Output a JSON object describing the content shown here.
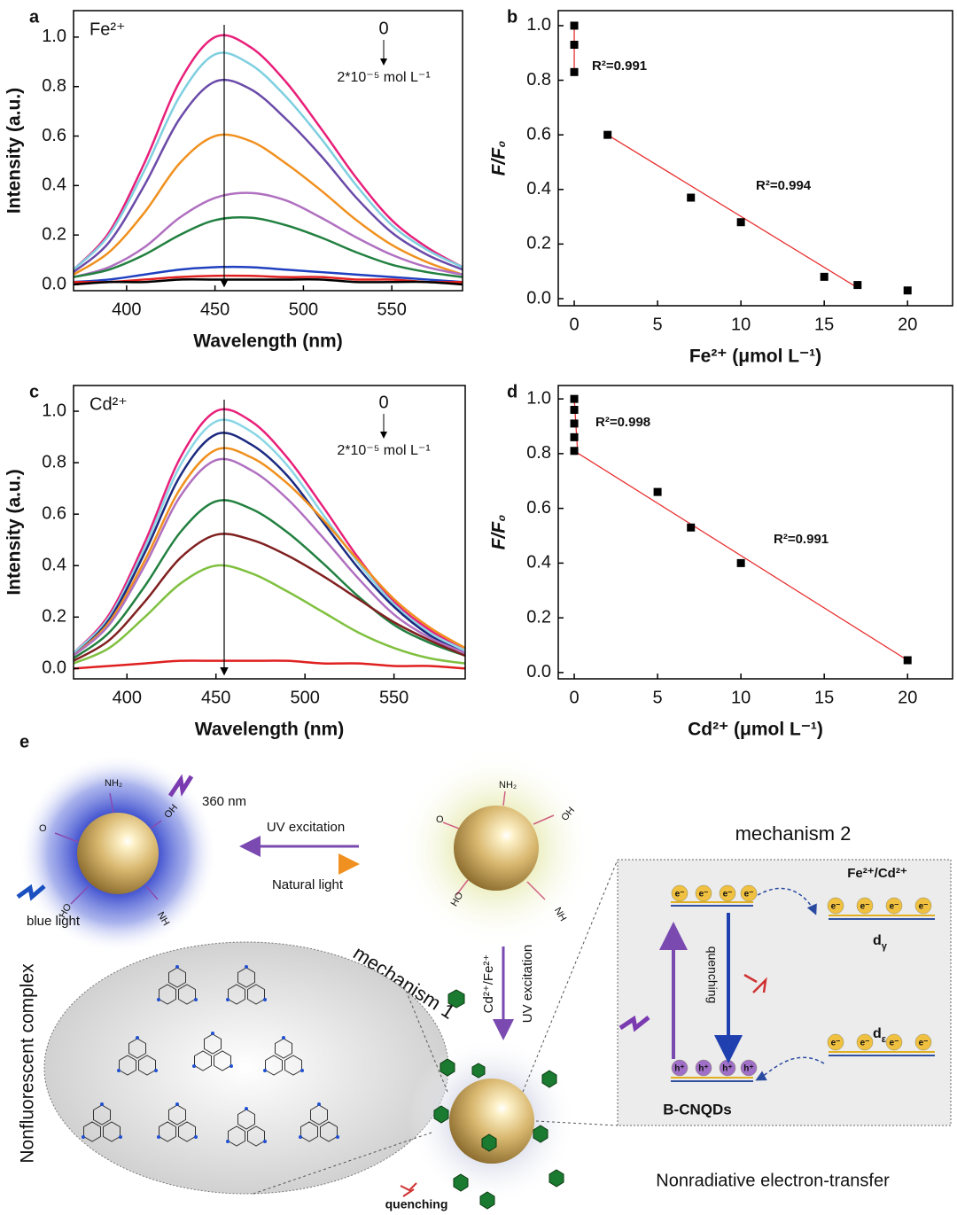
{
  "chart_data": [
    {
      "type": "line",
      "panel_label": "a",
      "x_label": "Wavelength (nm)",
      "y_label": "Intensity (a.u.)",
      "annotations": [
        "Fe²⁺",
        "0",
        "2*10⁻⁵ mol L⁻¹"
      ],
      "x": [
        370,
        390,
        410,
        430,
        450,
        470,
        490,
        510,
        530,
        550,
        570,
        590
      ],
      "series": [
        {
          "color": "#e8207a",
          "values": [
            0.06,
            0.21,
            0.49,
            0.82,
            1.0,
            0.96,
            0.82,
            0.63,
            0.43,
            0.26,
            0.15,
            0.07
          ]
        },
        {
          "color": "#7ecfe0",
          "values": [
            0.06,
            0.2,
            0.46,
            0.76,
            0.93,
            0.89,
            0.76,
            0.59,
            0.4,
            0.24,
            0.14,
            0.07
          ]
        },
        {
          "color": "#6a4aa8",
          "values": [
            0.05,
            0.17,
            0.4,
            0.67,
            0.82,
            0.79,
            0.67,
            0.52,
            0.35,
            0.21,
            0.12,
            0.06
          ]
        },
        {
          "color": "#f0901e",
          "values": [
            0.04,
            0.13,
            0.29,
            0.49,
            0.6,
            0.58,
            0.49,
            0.38,
            0.26,
            0.16,
            0.09,
            0.04
          ]
        },
        {
          "color": "#b070c0",
          "values": [
            0.03,
            0.07,
            0.15,
            0.27,
            0.35,
            0.37,
            0.34,
            0.27,
            0.19,
            0.12,
            0.07,
            0.04
          ]
        },
        {
          "color": "#228040",
          "values": [
            0.03,
            0.06,
            0.12,
            0.2,
            0.26,
            0.27,
            0.24,
            0.19,
            0.13,
            0.08,
            0.05,
            0.03
          ]
        },
        {
          "color": "#2040c0",
          "values": [
            0.01,
            0.02,
            0.04,
            0.06,
            0.07,
            0.07,
            0.06,
            0.05,
            0.04,
            0.03,
            0.02,
            0.01
          ]
        },
        {
          "color": "#e02020",
          "values": [
            0.01,
            0.01,
            0.02,
            0.03,
            0.035,
            0.035,
            0.03,
            0.03,
            0.02,
            0.02,
            0.01,
            0.01
          ]
        },
        {
          "color": "#000000",
          "values": [
            0.0,
            0.01,
            0.01,
            0.02,
            0.02,
            0.02,
            0.02,
            0.02,
            0.01,
            0.01,
            0.01,
            0.0
          ]
        }
      ],
      "xlim": [
        370,
        590
      ],
      "ylim": [
        -0.025,
        1.107
      ],
      "xticks": [
        400,
        450,
        500,
        550
      ],
      "yticks": [
        {
          "value": 0,
          "label": "0.0"
        },
        {
          "value": 0.2,
          "label": "0.2"
        },
        {
          "value": 0.4,
          "label": "0.4"
        },
        {
          "value": 0.6,
          "label": "0.6"
        },
        {
          "value": 0.8,
          "label": "0.8"
        },
        {
          "value": 1,
          "label": "1.0"
        }
      ]
    },
    {
      "type": "scatter",
      "panel_label": "b",
      "x_label": "Fe²⁺ (μmol L⁻¹)",
      "y_label": "F/F₀",
      "color": "#000000",
      "annotations": [
        "R²=0.991",
        "R²=0.994"
      ],
      "x": [
        0,
        0,
        0,
        2,
        7,
        10,
        15,
        17,
        20
      ],
      "values": [
        1.0,
        0.93,
        0.83,
        0.6,
        0.37,
        0.28,
        0.08,
        0.05,
        0.03
      ],
      "fit_lines": [
        {
          "color": "#e83030",
          "x": [
            0,
            0
          ],
          "values": [
            1.0,
            0.83
          ]
        },
        {
          "color": "#e83030",
          "x": [
            2,
            17
          ],
          "values": [
            0.6,
            0.04
          ]
        }
      ],
      "xlim": [
        -0.96,
        22.7
      ],
      "ylim": [
        -0.026,
        1.055
      ],
      "xticks": [
        0,
        5,
        10,
        15,
        20
      ],
      "yticks": [
        {
          "value": 0,
          "label": "0.0"
        },
        {
          "value": 0.2,
          "label": "0.2"
        },
        {
          "value": 0.4,
          "label": "0.4"
        },
        {
          "value": 0.6,
          "label": "0.6"
        },
        {
          "value": 0.8,
          "label": "0.8"
        },
        {
          "value": 1,
          "label": "1.0"
        }
      ]
    },
    {
      "type": "line",
      "panel_label": "c",
      "x_label": "Wavelength (nm)",
      "y_label": "Intensity (a.u.)",
      "annotations": [
        "Cd²⁺",
        "0",
        "2*10⁻⁵ mol L⁻¹"
      ],
      "x": [
        370,
        390,
        410,
        430,
        450,
        470,
        490,
        510,
        530,
        550,
        570,
        590
      ],
      "series": [
        {
          "color": "#e8207a",
          "values": [
            0.06,
            0.21,
            0.49,
            0.82,
            1.0,
            0.96,
            0.82,
            0.63,
            0.43,
            0.26,
            0.15,
            0.07
          ]
        },
        {
          "color": "#8ad6e6",
          "values": [
            0.06,
            0.2,
            0.47,
            0.79,
            0.96,
            0.92,
            0.79,
            0.6,
            0.41,
            0.25,
            0.14,
            0.07
          ]
        },
        {
          "color": "#1c2a80",
          "values": [
            0.05,
            0.19,
            0.45,
            0.75,
            0.91,
            0.87,
            0.75,
            0.57,
            0.39,
            0.24,
            0.13,
            0.06
          ]
        },
        {
          "color": "#f0901e",
          "values": [
            0.05,
            0.18,
            0.42,
            0.7,
            0.85,
            0.82,
            0.72,
            0.58,
            0.42,
            0.27,
            0.16,
            0.08
          ]
        },
        {
          "color": "#b070c0",
          "values": [
            0.05,
            0.17,
            0.4,
            0.67,
            0.81,
            0.77,
            0.66,
            0.51,
            0.35,
            0.21,
            0.12,
            0.06
          ]
        },
        {
          "color": "#228040",
          "values": [
            0.04,
            0.14,
            0.32,
            0.53,
            0.65,
            0.62,
            0.53,
            0.41,
            0.28,
            0.17,
            0.1,
            0.05
          ]
        },
        {
          "color": "#802020",
          "values": [
            0.03,
            0.11,
            0.26,
            0.43,
            0.52,
            0.5,
            0.44,
            0.36,
            0.27,
            0.18,
            0.11,
            0.05
          ]
        },
        {
          "color": "#80c040",
          "values": [
            0.02,
            0.08,
            0.2,
            0.33,
            0.4,
            0.37,
            0.3,
            0.22,
            0.14,
            0.08,
            0.04,
            0.02
          ]
        },
        {
          "color": "#e02020",
          "values": [
            0.0,
            0.01,
            0.02,
            0.03,
            0.03,
            0.03,
            0.03,
            0.02,
            0.02,
            0.01,
            0.01,
            0.0
          ]
        }
      ],
      "xlim": [
        370,
        590
      ],
      "ylim": [
        -0.04,
        1.1
      ],
      "xticks": [
        400,
        450,
        500,
        550
      ],
      "yticks": [
        {
          "value": 0,
          "label": "0.0"
        },
        {
          "value": 0.2,
          "label": "0.2"
        },
        {
          "value": 0.4,
          "label": "0.4"
        },
        {
          "value": 0.6,
          "label": "0.6"
        },
        {
          "value": 0.8,
          "label": "0.8"
        },
        {
          "value": 1,
          "label": "1.0"
        }
      ]
    },
    {
      "type": "scatter",
      "panel_label": "d",
      "x_label": "Cd²⁺ (μmol L⁻¹)",
      "y_label": "F/F₀",
      "color": "#000000",
      "annotations": [
        "R²=0.998",
        "R²=0.991"
      ],
      "x": [
        0,
        0,
        0,
        0,
        0,
        5,
        7,
        10,
        20
      ],
      "values": [
        1.0,
        0.96,
        0.91,
        0.86,
        0.81,
        0.66,
        0.53,
        0.4,
        0.045
      ],
      "fit_lines": [
        {
          "color": "#e83030",
          "x": [
            0,
            0.2
          ],
          "values": [
            1.0,
            0.81
          ]
        },
        {
          "color": "#e83030",
          "x": [
            0,
            20
          ],
          "values": [
            0.81,
            0.045
          ]
        }
      ],
      "xlim": [
        -0.96,
        22.7
      ],
      "ylim": [
        -0.023,
        1.049
      ],
      "xticks": [
        0,
        5,
        10,
        15,
        20
      ],
      "yticks": [
        {
          "value": 0,
          "label": "0.0"
        },
        {
          "value": 0.2,
          "label": "0.2"
        },
        {
          "value": 0.4,
          "label": "0.4"
        },
        {
          "value": 0.6,
          "label": "0.6"
        },
        {
          "value": 0.8,
          "label": "0.8"
        },
        {
          "value": 1,
          "label": "1.0"
        }
      ]
    }
  ],
  "diagram": {
    "panel_label": "e",
    "excitation_wavelength": "360 nm",
    "uv_excitation": "UV excitation",
    "natural_light": "Natural light",
    "blue_light": "blue light",
    "mechanism_2": "mechanism 2",
    "ions": "Fe²⁺/Cd²⁺",
    "ions_reversed": "Cd²⁺/Fe²⁺",
    "complex": "Nonfluorescent complex",
    "mechanism_1": "mechanism 1",
    "quenching": "quenching",
    "level_label": "d",
    "gamma": "γ",
    "epsilon": "ε",
    "material": "B-CNQDs",
    "transfer": "Nonradiative electron-transfer",
    "electron": "e⁻",
    "hole": "h⁺",
    "groups": [
      "NH₂",
      "OH",
      "HO",
      "NH",
      "O"
    ]
  }
}
